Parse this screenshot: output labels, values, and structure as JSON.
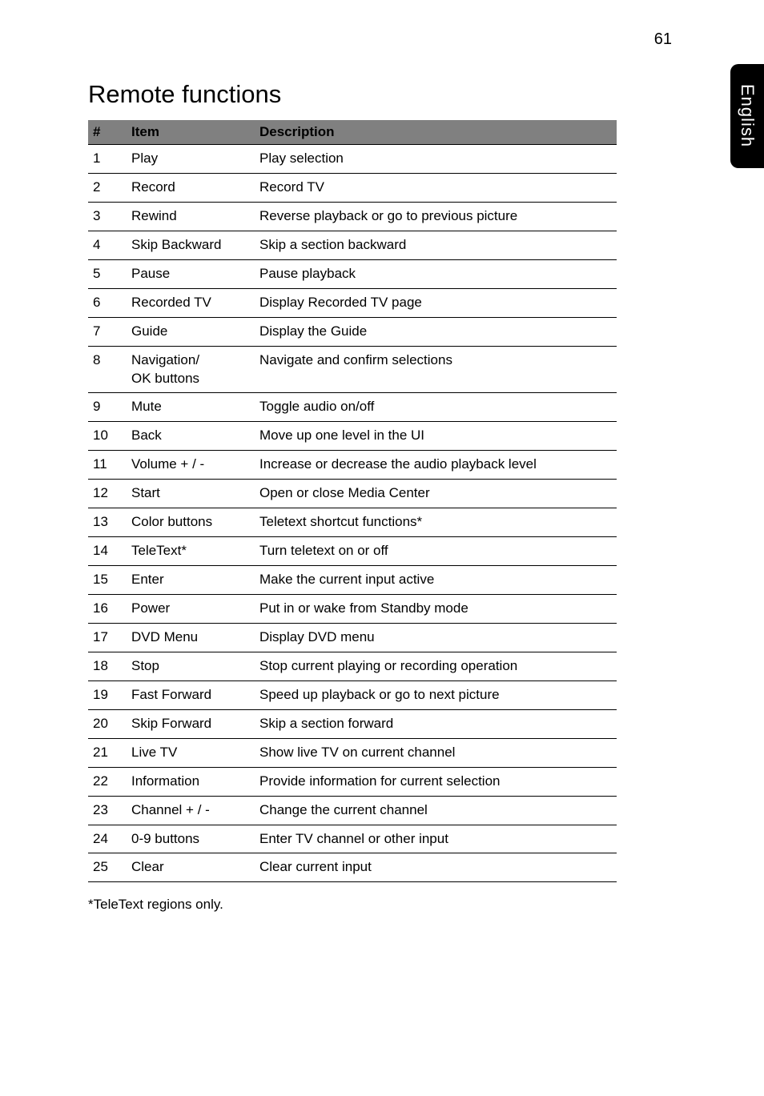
{
  "page_number": "61",
  "side_tab": "English",
  "heading": "Remote functions",
  "table": {
    "headers": {
      "num": "#",
      "item": "Item",
      "desc": "Description"
    },
    "rows": [
      {
        "num": "1",
        "item": "Play",
        "desc": "Play selection"
      },
      {
        "num": "2",
        "item": "Record",
        "desc": "Record TV"
      },
      {
        "num": "3",
        "item": "Rewind",
        "desc": "Reverse playback or go to previous picture"
      },
      {
        "num": "4",
        "item": "Skip Backward",
        "desc": "Skip a section backward"
      },
      {
        "num": "5",
        "item": "Pause",
        "desc": "Pause playback"
      },
      {
        "num": "6",
        "item": "Recorded TV",
        "desc": "Display Recorded TV page"
      },
      {
        "num": "7",
        "item": "Guide",
        "desc": "Display the Guide"
      },
      {
        "num": "8",
        "item": "Navigation/\nOK buttons",
        "desc": "Navigate and confirm selections"
      },
      {
        "num": "9",
        "item": "Mute",
        "desc": "Toggle audio on/off"
      },
      {
        "num": "10",
        "item": "Back",
        "desc": "Move up one level in the UI"
      },
      {
        "num": "11",
        "item": "Volume + / -",
        "desc": "Increase or decrease the audio playback level"
      },
      {
        "num": "12",
        "item": "Start",
        "desc": "Open or close Media Center"
      },
      {
        "num": "13",
        "item": "Color buttons",
        "desc": "Teletext shortcut functions*"
      },
      {
        "num": "14",
        "item": "TeleText*",
        "desc": "Turn teletext on or off"
      },
      {
        "num": "15",
        "item": "Enter",
        "desc": "Make the current input active"
      },
      {
        "num": "16",
        "item": "Power",
        "desc": "Put in or wake from Standby mode"
      },
      {
        "num": "17",
        "item": "DVD Menu",
        "desc": "Display DVD menu"
      },
      {
        "num": "18",
        "item": "Stop",
        "desc": "Stop current playing or recording operation"
      },
      {
        "num": "19",
        "item": "Fast Forward",
        "desc": "Speed up playback or go to next picture"
      },
      {
        "num": "20",
        "item": "Skip Forward",
        "desc": "Skip a section forward"
      },
      {
        "num": "21",
        "item": "Live TV",
        "desc": "Show live TV on current channel"
      },
      {
        "num": "22",
        "item": "Information",
        "desc": "Provide information for current selection"
      },
      {
        "num": "23",
        "item": "Channel + / -",
        "desc": "Change the current channel"
      },
      {
        "num": "24",
        "item": "0-9 buttons",
        "desc": "Enter TV channel or other input"
      },
      {
        "num": "25",
        "item": "Clear",
        "desc": "Clear current input"
      }
    ]
  },
  "footnote": "*TeleText regions only.",
  "colors": {
    "header_bg": "#808080",
    "border": "#000000",
    "page_bg": "#ffffff",
    "text": "#000000",
    "tab_bg": "#000000",
    "tab_text": "#ffffff"
  }
}
